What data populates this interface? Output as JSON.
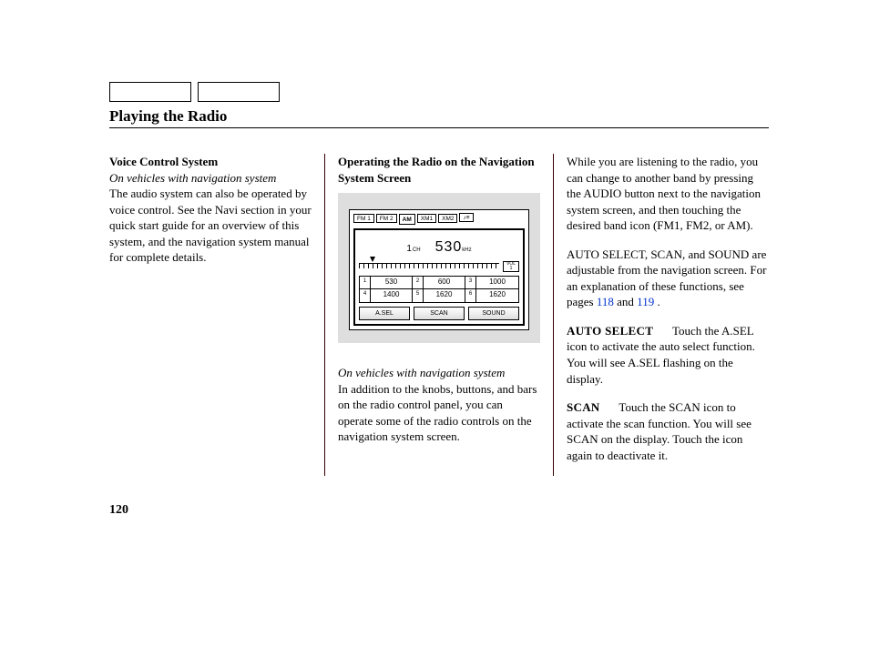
{
  "pageTitle": "Playing the Radio",
  "pageNumber": "120",
  "col1": {
    "subhead": "Voice Control System",
    "italicLine": "On vehicles with navigation system",
    "body": "The audio system can also be operated by voice control. See the Navi section in your quick start guide for an overview of this system, and the navigation system manual for complete details."
  },
  "col2": {
    "subhead": "Operating the Radio on the Navigation System Screen",
    "captionItalic": "On vehicles with navigation system",
    "caption": "In addition to the knobs, buttons, and bars on the radio control panel, you can operate some of the radio controls on the navigation system screen."
  },
  "radio": {
    "tabs": [
      "FM 1",
      "FM 2",
      "AM",
      "XM1",
      "XM2"
    ],
    "tabActiveIndex": 2,
    "ch_label_num": "1",
    "ch_label_suffix": "CH",
    "freq": "530",
    "freq_unit": "kHz",
    "vol_label": "VOL",
    "vol_value": "1",
    "presets": [
      {
        "n": "1",
        "v": "530"
      },
      {
        "n": "2",
        "v": "600"
      },
      {
        "n": "3",
        "v": "1000"
      },
      {
        "n": "4",
        "v": "1400"
      },
      {
        "n": "5",
        "v": "1620"
      },
      {
        "n": "6",
        "v": "1620"
      }
    ],
    "buttons": [
      "A.SEL",
      "SCAN",
      "SOUND"
    ]
  },
  "col3": {
    "p1": "While you are listening to the radio, you can change to another band by pressing the AUDIO button next to the navigation system screen, and then touching the desired band icon (FM1, FM2, or AM).",
    "p2_a": "AUTO SELECT, SCAN, and SOUND are adjustable from the navigation screen. For an explanation of these functions, see pages ",
    "link1": "118",
    "p2_mid": " and ",
    "link2": "119",
    "p2_end": " .",
    "term1": "AUTO SELECT",
    "p3": "Touch the A.SEL icon to activate the auto select function. You will see A.SEL flashing on the display.",
    "term2": "SCAN",
    "p4": "Touch the SCAN icon to activate the scan function. You will see SCAN on the display. Touch the icon again to deactivate it."
  },
  "colors": {
    "figure_bg": "#dedede",
    "link": "#0033cc",
    "divider": "#330000"
  }
}
